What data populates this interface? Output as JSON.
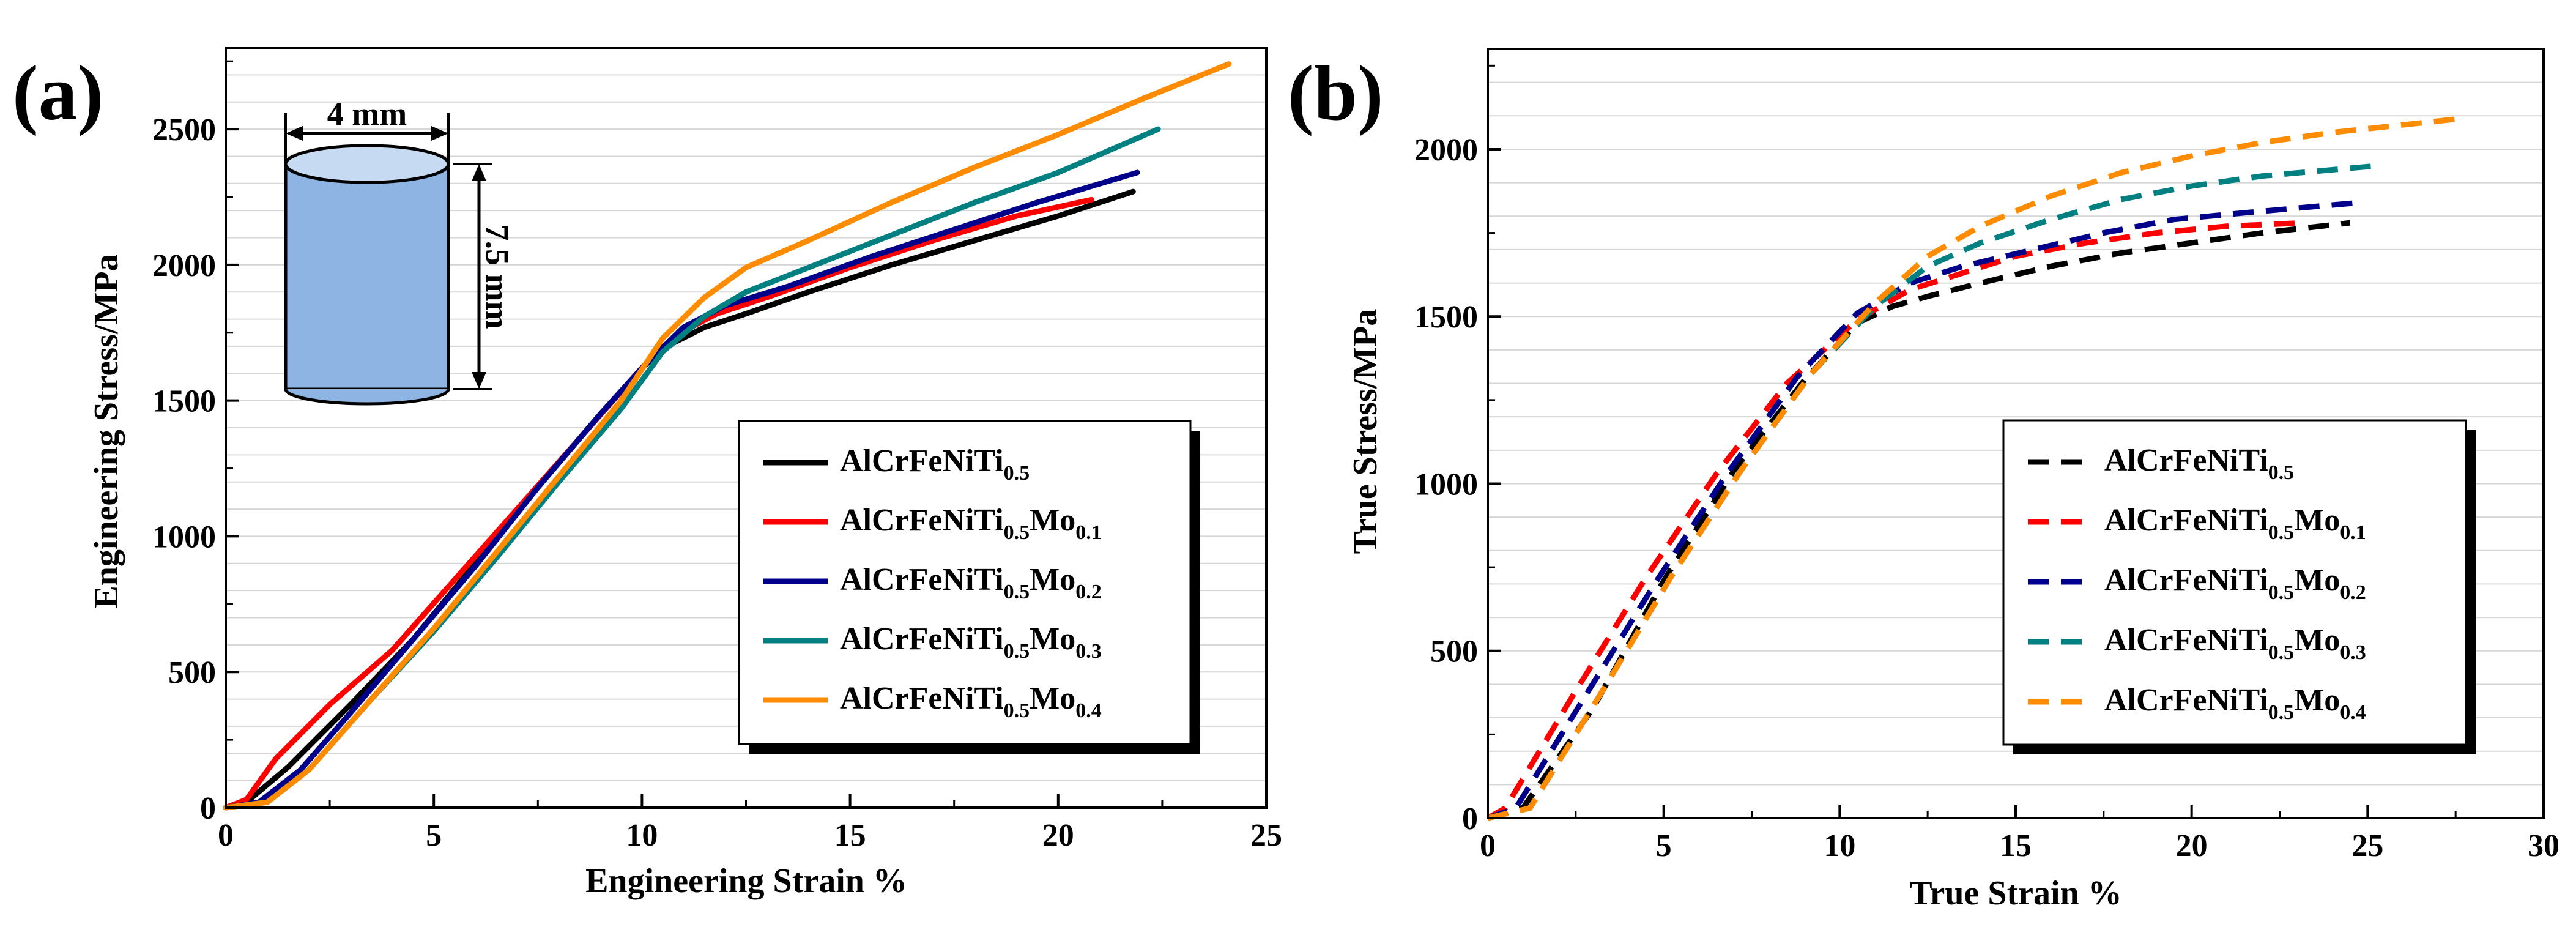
{
  "chart_data": [
    {
      "type": "line",
      "panel_label": "(a)",
      "xlabel": "Engineering Strain %",
      "ylabel": "Engineering Stress/MPa",
      "xlim": [
        0,
        25
      ],
      "ylim": [
        0,
        2800
      ],
      "xticks": [
        "0",
        "5",
        "10",
        "15",
        "20",
        "25"
      ],
      "yticks": [
        "0",
        "500",
        "1000",
        "1500",
        "2000",
        "2500"
      ],
      "grid": "horizontal",
      "legend_position": "lower-right",
      "line_style": "solid",
      "inset": {
        "diameter_label": "4 mm",
        "height_label": "7.5 mm"
      },
      "series": [
        {
          "name": "AlCrFeNiTi",
          "sub1": "0.5",
          "mo": "",
          "sub2": "",
          "color": "#000000",
          "x": [
            0,
            0.5,
            1.5,
            3,
            4.5,
            6,
            7.5,
            9,
            10,
            10.6,
            11.5,
            12.5,
            14,
            16,
            18,
            20,
            21.8
          ],
          "y": [
            0,
            20,
            150,
            380,
            620,
            900,
            1180,
            1450,
            1620,
            1700,
            1770,
            1820,
            1900,
            2000,
            2090,
            2180,
            2270
          ]
        },
        {
          "name": "AlCrFeNiTi",
          "sub1": "0.5",
          "mo": "Mo",
          "sub2": "0.1",
          "color": "#ff0000",
          "x": [
            0,
            0.5,
            1.2,
            2.5,
            4,
            5.5,
            7,
            8.5,
            10,
            10.8,
            11.8,
            13,
            15,
            17,
            19,
            20.8
          ],
          "y": [
            0,
            30,
            180,
            380,
            580,
            840,
            1100,
            1360,
            1620,
            1740,
            1820,
            1880,
            1990,
            2090,
            2180,
            2240
          ]
        },
        {
          "name": "AlCrFeNiTi",
          "sub1": "0.5",
          "mo": "Mo",
          "sub2": "0.2",
          "color": "#00008b",
          "x": [
            0,
            0.8,
            1.8,
            3,
            4.5,
            6,
            7.5,
            9,
            10,
            11,
            12,
            13.5,
            15.5,
            17.5,
            19.5,
            21.9
          ],
          "y": [
            0,
            20,
            140,
            350,
            620,
            890,
            1180,
            1450,
            1620,
            1770,
            1850,
            1920,
            2030,
            2130,
            2230,
            2340
          ]
        },
        {
          "name": "AlCrFeNiTi",
          "sub1": "0.5",
          "mo": "Mo",
          "sub2": "0.3",
          "color": "#008080",
          "x": [
            0,
            1.0,
            2.0,
            3.5,
            5,
            6.5,
            8,
            9.5,
            10.5,
            11.5,
            12.5,
            14,
            16,
            18,
            20,
            22.4
          ],
          "y": [
            0,
            20,
            140,
            400,
            650,
            920,
            1200,
            1470,
            1680,
            1810,
            1900,
            1990,
            2110,
            2230,
            2340,
            2500
          ]
        },
        {
          "name": "AlCrFeNiTi",
          "sub1": "0.5",
          "mo": "Mo",
          "sub2": "0.4",
          "color": "#ff8c00",
          "x": [
            0,
            1.0,
            2.0,
            3.5,
            5,
            6.5,
            8,
            9.5,
            10.5,
            11.5,
            12.5,
            14,
            16,
            18,
            20,
            22,
            24.1
          ],
          "y": [
            0,
            20,
            140,
            400,
            660,
            940,
            1220,
            1500,
            1730,
            1880,
            1990,
            2090,
            2230,
            2360,
            2480,
            2610,
            2740
          ]
        }
      ]
    },
    {
      "type": "line",
      "panel_label": "(b)",
      "xlabel": "True Strain %",
      "ylabel": "True Stress/MPa",
      "xlim": [
        0,
        30
      ],
      "ylim": [
        0,
        2300
      ],
      "xticks": [
        "0",
        "5",
        "10",
        "15",
        "20",
        "25",
        "30"
      ],
      "yticks": [
        "0",
        "500",
        "1000",
        "1500",
        "2000"
      ],
      "grid": "horizontal",
      "legend_position": "lower-right",
      "line_style": "dashed",
      "series": [
        {
          "name": "AlCrFeNiTi",
          "sub1": "0.5",
          "mo": "",
          "sub2": "",
          "color": "#000000",
          "x": [
            0,
            1.0,
            3,
            5,
            7,
            9,
            10.5,
            11.5,
            12.5,
            14,
            16,
            18,
            20,
            22,
            24.5
          ],
          "y": [
            0,
            30,
            330,
            710,
            1040,
            1310,
            1480,
            1530,
            1560,
            1600,
            1650,
            1690,
            1720,
            1750,
            1780
          ]
        },
        {
          "name": "AlCrFeNiTi",
          "sub1": "0.5",
          "mo": "Mo",
          "sub2": "0.1",
          "color": "#ff0000",
          "x": [
            0,
            0.5,
            2.5,
            4.5,
            6.5,
            8.5,
            10.5,
            12,
            13.5,
            15,
            17,
            19,
            21,
            23.2
          ],
          "y": [
            0,
            30,
            380,
            720,
            1030,
            1300,
            1490,
            1580,
            1630,
            1680,
            1720,
            1750,
            1770,
            1780
          ]
        },
        {
          "name": "AlCrFeNiTi",
          "sub1": "0.5",
          "mo": "Mo",
          "sub2": "0.2",
          "color": "#00008b",
          "x": [
            0,
            0.8,
            2.8,
            4.8,
            6.8,
            8.8,
            10.5,
            12,
            13.5,
            15.5,
            17.5,
            19.5,
            21.5,
            24.7
          ],
          "y": [
            0,
            30,
            370,
            710,
            1030,
            1320,
            1510,
            1600,
            1650,
            1700,
            1750,
            1790,
            1810,
            1840
          ]
        },
        {
          "name": "AlCrFeNiTi",
          "sub1": "0.5",
          "mo": "Mo",
          "sub2": "0.3",
          "color": "#008080",
          "x": [
            0,
            1.2,
            3.2,
            5.2,
            7.2,
            9.2,
            11,
            12.5,
            14,
            16,
            18,
            20,
            22,
            25.2
          ],
          "y": [
            0,
            30,
            370,
            720,
            1040,
            1330,
            1530,
            1650,
            1720,
            1790,
            1850,
            1890,
            1920,
            1950
          ]
        },
        {
          "name": "AlCrFeNiTi",
          "sub1": "0.5",
          "mo": "Mo",
          "sub2": "0.4",
          "color": "#ff8c00",
          "x": [
            0,
            1.2,
            3.2,
            5.2,
            7.2,
            9.2,
            11,
            12.5,
            14,
            16,
            18,
            20,
            22,
            24,
            27.5
          ],
          "y": [
            0,
            30,
            370,
            720,
            1040,
            1330,
            1540,
            1680,
            1770,
            1860,
            1930,
            1980,
            2020,
            2050,
            2090
          ]
        }
      ]
    }
  ]
}
